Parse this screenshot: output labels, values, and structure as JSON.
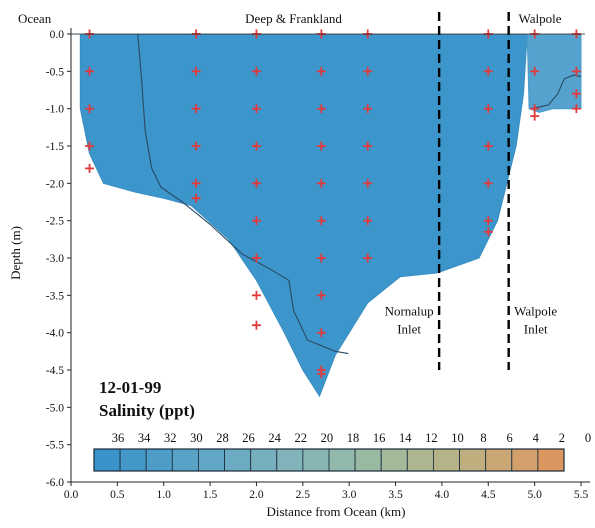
{
  "chart_data": {
    "type": "heatmap",
    "title": "12-01-99",
    "subtitle": "Salinity (ppt)",
    "xlabel": "Distance from Ocean (km)",
    "ylabel": "Depth (m)",
    "xlim": [
      0.0,
      5.5
    ],
    "ylim": [
      -6.0,
      0.0
    ],
    "x_ticks": [
      "0.0",
      "0.5",
      "1.0",
      "1.5",
      "2.0",
      "2.5",
      "3.0",
      "3.5",
      "4.0",
      "4.5",
      "5.0",
      "5.5"
    ],
    "y_ticks": [
      "0.0",
      "-0.5",
      "-1.0",
      "-1.5",
      "-2.0",
      "-2.5",
      "-3.0",
      "-3.5",
      "-4.0",
      "-4.5",
      "-5.0",
      "-5.5",
      "-6.0"
    ],
    "region_labels": [
      {
        "text": "Ocean",
        "x": 0.1
      },
      {
        "text": "Deep & Frankland",
        "x": 2.4
      },
      {
        "text": "Walpole",
        "x": 5.25
      }
    ],
    "inlets": [
      {
        "x": 3.97,
        "line1": "Nornalup",
        "line2": "Inlet"
      },
      {
        "x": 4.72,
        "line1": "Walpole",
        "line2": "Inlet"
      }
    ],
    "colorbar": {
      "labels": [
        "36",
        "34",
        "32",
        "30",
        "28",
        "26",
        "24",
        "22",
        "20",
        "18",
        "16",
        "14",
        "12",
        "10",
        "8",
        "6",
        "4",
        "2",
        "0"
      ],
      "colors": [
        "#3a93c9",
        "#4498c9",
        "#4e9dc9",
        "#58a2c8",
        "#62a7c6",
        "#6cacc3",
        "#76b0bf",
        "#80b4ba",
        "#88b7b3",
        "#90b9ab",
        "#98baa3",
        "#a2b99a",
        "#acb791",
        "#b6b388",
        "#c0ae7e",
        "#caa774",
        "#d39f6a",
        "#db9660"
      ]
    },
    "domain_profile": [
      {
        "x": 0.0,
        "y": 0.0
      },
      {
        "x": 0.1,
        "y": 0.0
      },
      {
        "x": 0.1,
        "y": -1.0
      },
      {
        "x": 0.2,
        "y": -1.6
      },
      {
        "x": 0.35,
        "y": -2.0
      },
      {
        "x": 0.7,
        "y": -2.12
      },
      {
        "x": 1.0,
        "y": -2.2
      },
      {
        "x": 1.3,
        "y": -2.3
      },
      {
        "x": 1.7,
        "y": -2.75
      },
      {
        "x": 2.0,
        "y": -3.3
      },
      {
        "x": 2.3,
        "y": -4.0
      },
      {
        "x": 2.5,
        "y": -4.5
      },
      {
        "x": 2.68,
        "y": -4.85
      },
      {
        "x": 2.85,
        "y": -4.3
      },
      {
        "x": 3.2,
        "y": -3.6
      },
      {
        "x": 3.55,
        "y": -3.25
      },
      {
        "x": 3.95,
        "y": -3.2
      },
      {
        "x": 4.4,
        "y": -3.0
      },
      {
        "x": 4.6,
        "y": -2.5
      },
      {
        "x": 4.8,
        "y": -1.5
      },
      {
        "x": 4.88,
        "y": -0.8
      },
      {
        "x": 4.92,
        "y": 0.0
      }
    ],
    "walpole_profile": [
      {
        "x": 4.92,
        "y": 0.0
      },
      {
        "x": 4.94,
        "y": -1.0
      },
      {
        "x": 5.05,
        "y": -1.05
      },
      {
        "x": 5.2,
        "y": -1.0
      },
      {
        "x": 5.32,
        "y": -1.0
      },
      {
        "x": 5.5,
        "y": -1.0
      },
      {
        "x": 5.5,
        "y": 0.0
      }
    ],
    "contours": [
      [
        {
          "x": 0.72,
          "y": 0.0
        },
        {
          "x": 0.76,
          "y": -0.6
        },
        {
          "x": 0.8,
          "y": -1.3
        },
        {
          "x": 0.87,
          "y": -1.8
        },
        {
          "x": 0.97,
          "y": -2.05
        },
        {
          "x": 1.2,
          "y": -2.25
        },
        {
          "x": 1.5,
          "y": -2.55
        },
        {
          "x": 1.85,
          "y": -2.95
        },
        {
          "x": 2.15,
          "y": -3.15
        },
        {
          "x": 2.35,
          "y": -3.3
        },
        {
          "x": 2.4,
          "y": -3.7
        },
        {
          "x": 2.55,
          "y": -4.1
        },
        {
          "x": 2.85,
          "y": -4.25
        },
        {
          "x": 2.99,
          "y": -4.28
        }
      ],
      [
        {
          "x": 4.97,
          "y": -1.0
        },
        {
          "x": 5.15,
          "y": -0.95
        },
        {
          "x": 5.25,
          "y": -0.8
        },
        {
          "x": 5.32,
          "y": -0.6
        },
        {
          "x": 5.42,
          "y": -0.55
        },
        {
          "x": 5.5,
          "y": -0.57
        }
      ]
    ],
    "sample_points": [
      {
        "x": 0.2,
        "y": 0.0
      },
      {
        "x": 0.2,
        "y": -0.5
      },
      {
        "x": 0.2,
        "y": -1.0
      },
      {
        "x": 0.2,
        "y": -1.5
      },
      {
        "x": 0.2,
        "y": -1.8
      },
      {
        "x": 1.35,
        "y": 0.0
      },
      {
        "x": 1.35,
        "y": -0.5
      },
      {
        "x": 1.35,
        "y": -1.0
      },
      {
        "x": 1.35,
        "y": -1.5
      },
      {
        "x": 1.35,
        "y": -2.0
      },
      {
        "x": 1.35,
        "y": -2.2
      },
      {
        "x": 2.0,
        "y": 0.0
      },
      {
        "x": 2.0,
        "y": -0.5
      },
      {
        "x": 2.0,
        "y": -1.0
      },
      {
        "x": 2.0,
        "y": -1.5
      },
      {
        "x": 2.0,
        "y": -2.0
      },
      {
        "x": 2.0,
        "y": -2.5
      },
      {
        "x": 2.0,
        "y": -3.0
      },
      {
        "x": 2.0,
        "y": -3.5
      },
      {
        "x": 2.0,
        "y": -3.9
      },
      {
        "x": 2.7,
        "y": 0.0
      },
      {
        "x": 2.7,
        "y": -0.5
      },
      {
        "x": 2.7,
        "y": -1.0
      },
      {
        "x": 2.7,
        "y": -1.5
      },
      {
        "x": 2.7,
        "y": -2.0
      },
      {
        "x": 2.7,
        "y": -2.5
      },
      {
        "x": 2.7,
        "y": -3.0
      },
      {
        "x": 2.7,
        "y": -3.5
      },
      {
        "x": 2.7,
        "y": -4.0
      },
      {
        "x": 2.7,
        "y": -4.5
      },
      {
        "x": 2.7,
        "y": -4.55
      },
      {
        "x": 3.2,
        "y": 0.0
      },
      {
        "x": 3.2,
        "y": -0.5
      },
      {
        "x": 3.2,
        "y": -1.0
      },
      {
        "x": 3.2,
        "y": -1.5
      },
      {
        "x": 3.2,
        "y": -2.0
      },
      {
        "x": 3.2,
        "y": -2.5
      },
      {
        "x": 3.2,
        "y": -3.0
      },
      {
        "x": 4.5,
        "y": 0.0
      },
      {
        "x": 4.5,
        "y": -0.5
      },
      {
        "x": 4.5,
        "y": -1.0
      },
      {
        "x": 4.5,
        "y": -1.5
      },
      {
        "x": 4.5,
        "y": -2.0
      },
      {
        "x": 4.5,
        "y": -2.5
      },
      {
        "x": 4.5,
        "y": -2.65
      },
      {
        "x": 5.0,
        "y": 0.0
      },
      {
        "x": 5.0,
        "y": -0.5
      },
      {
        "x": 5.0,
        "y": -1.0
      },
      {
        "x": 5.0,
        "y": -1.1
      },
      {
        "x": 5.45,
        "y": 0.0
      },
      {
        "x": 5.45,
        "y": -0.5
      },
      {
        "x": 5.45,
        "y": -0.8
      },
      {
        "x": 5.45,
        "y": -1.0
      }
    ],
    "colors": {
      "water": "#3c95cb",
      "walpole_water": "#55a2ce",
      "marker": "#e23a3a",
      "contour": "#2a4a66"
    }
  }
}
